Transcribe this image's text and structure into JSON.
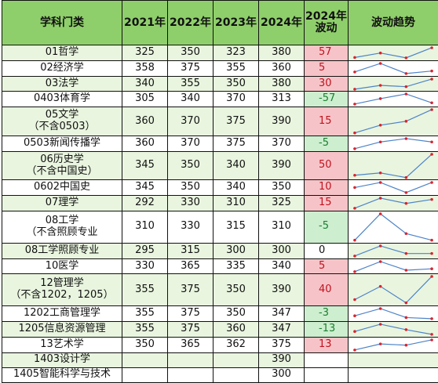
{
  "headers": {
    "subject": "学科门类",
    "y2021": "2021年",
    "y2022": "2022年",
    "y2023": "2023年",
    "y2024": "2024年",
    "delta": "2024年\n波动",
    "trend": "波动趋势"
  },
  "colors": {
    "header_bg": "#8fcf6b",
    "band_bg": "#e9f5df",
    "delta_pos_bg": "#f6c4c8",
    "delta_pos_fg": "#c1121f",
    "delta_neg_bg": "#cdeecf",
    "delta_neg_fg": "#1a7f2e",
    "spark_line": "#4d83c8",
    "spark_point": "#d9232d"
  },
  "rows": [
    {
      "name": "01哲学",
      "v2021": "325",
      "v2022": "350",
      "v2023": "323",
      "v2024": "380",
      "delta": "57"
    },
    {
      "name": "02经济学",
      "v2021": "358",
      "v2022": "375",
      "v2023": "355",
      "v2024": "360",
      "delta": "5"
    },
    {
      "name": "03法学",
      "v2021": "340",
      "v2022": "355",
      "v2023": "350",
      "v2024": "380",
      "delta": "30"
    },
    {
      "name": "0403体育学",
      "v2021": "305",
      "v2022": "340",
      "v2023": "370",
      "v2024": "313",
      "delta": "-57"
    },
    {
      "name": "05文学\n（不含0503）",
      "v2021": "360",
      "v2022": "370",
      "v2023": "375",
      "v2024": "390",
      "delta": "15"
    },
    {
      "name": "0503新闻传播学",
      "v2021": "360",
      "v2022": "370",
      "v2023": "375",
      "v2024": "370",
      "delta": "-5"
    },
    {
      "name": "06历史学\n（不含中国史）",
      "v2021": "345",
      "v2022": "350",
      "v2023": "340",
      "v2024": "390",
      "delta": "50"
    },
    {
      "name": "0602中国史",
      "v2021": "345",
      "v2022": "350",
      "v2023": "340",
      "v2024": "350",
      "delta": "10"
    },
    {
      "name": "07理学",
      "v2021": "292",
      "v2022": "330",
      "v2023": "310",
      "v2024": "325",
      "delta": "15"
    },
    {
      "name": "08工学\n（不含照顾专业",
      "v2021": "310",
      "v2022": "330",
      "v2023": "315",
      "v2024": "310",
      "delta": "-5"
    },
    {
      "name": "08工学照顾专业",
      "v2021": "295",
      "v2022": "315",
      "v2023": "300",
      "v2024": "300",
      "delta": "0"
    },
    {
      "name": "10医学",
      "v2021": "330",
      "v2022": "365",
      "v2023": "335",
      "v2024": "340",
      "delta": "5"
    },
    {
      "name": "12管理学\n（不含1202，1205）",
      "v2021": "355",
      "v2022": "375",
      "v2023": "350",
      "v2024": "390",
      "delta": "40"
    },
    {
      "name": "1202工商管理学",
      "v2021": "355",
      "v2022": "375",
      "v2023": "350",
      "v2024": "347",
      "delta": "-3"
    },
    {
      "name": "1205信息资源管理",
      "v2021": "355",
      "v2022": "375",
      "v2023": "360",
      "v2024": "347",
      "delta": "-13"
    },
    {
      "name": "13艺术学",
      "v2021": "350",
      "v2022": "365",
      "v2023": "362",
      "v2024": "375",
      "delta": "13"
    },
    {
      "name": "1403设计学",
      "v2021": "",
      "v2022": "",
      "v2023": "",
      "v2024": "390",
      "delta": ""
    },
    {
      "name": "1405智能科学与技术",
      "v2021": "",
      "v2022": "",
      "v2023": "",
      "v2024": "300",
      "delta": ""
    }
  ]
}
